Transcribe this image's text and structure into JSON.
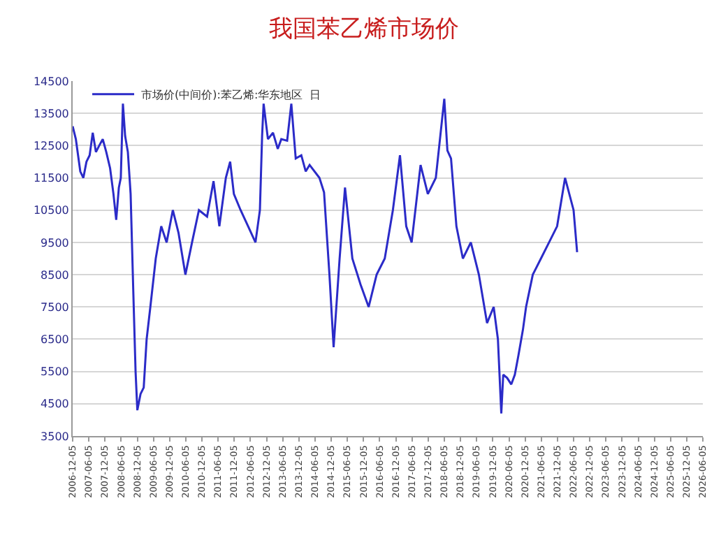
{
  "chart_data": {
    "type": "line",
    "title": "我国苯乙烯市场价",
    "x": [
      "2006-12-05",
      "2007-01-10",
      "2007-03-01",
      "2007-04-05",
      "2007-05-10",
      "2007-06-15",
      "2007-07-20",
      "2007-08-25",
      "2007-10-01",
      "2007-11-10",
      "2007-12-20",
      "2008-02-01",
      "2008-03-10",
      "2008-04-10",
      "2008-05-10",
      "2008-06-01",
      "2008-06-25",
      "2008-07-20",
      "2008-08-20",
      "2008-09-20",
      "2008-10-20",
      "2008-11-15",
      "2008-12-05",
      "2009-01-10",
      "2009-02-15",
      "2009-03-20",
      "2009-05-01",
      "2009-07-01",
      "2009-09-01",
      "2009-11-01",
      "2010-01-10",
      "2010-03-15",
      "2010-06-01",
      "2010-08-15",
      "2010-11-01",
      "2011-02-01",
      "2011-04-15",
      "2011-06-20",
      "2011-09-01",
      "2011-10-20",
      "2011-12-01",
      "2012-02-15",
      "2012-05-10",
      "2012-08-01",
      "2012-09-20",
      "2012-10-15",
      "2012-11-01",
      "2012-12-20",
      "2013-02-15",
      "2013-04-10",
      "2013-05-20",
      "2013-07-25",
      "2013-09-10",
      "2013-10-30",
      "2014-01-01",
      "2014-02-20",
      "2014-04-05",
      "2014-07-25",
      "2014-09-15",
      "2014-11-15",
      "2015-01-01",
      "2015-03-10",
      "2015-05-10",
      "2015-08-01",
      "2015-11-01",
      "2016-02-01",
      "2016-05-01",
      "2016-08-01",
      "2016-11-01",
      "2017-01-20",
      "2017-04-01",
      "2017-06-01",
      "2017-09-10",
      "2017-12-01",
      "2018-03-01",
      "2018-06-05",
      "2018-07-10",
      "2018-08-20",
      "2018-10-20",
      "2019-01-01",
      "2019-04-01",
      "2019-07-01",
      "2019-10-01",
      "2019-12-15",
      "2020-02-01",
      "2020-03-10",
      "2020-04-01",
      "2020-05-15",
      "2020-07-01",
      "2020-08-10",
      "2020-09-20",
      "2020-11-10",
      "2020-12-15",
      "2021-03-01",
      "2021-06-01",
      "2021-09-01",
      "2021-12-01",
      "2022-03-01",
      "2022-06-05",
      "2022-07-15"
    ],
    "series": [
      {
        "name": "市场价(中间价):苯乙烯:华东地区  日",
        "color": "#2b2bc8",
        "values": [
          13100,
          12700,
          11700,
          11500,
          12000,
          12200,
          12900,
          12300,
          12500,
          12700,
          12300,
          11800,
          11000,
          10200,
          11200,
          11500,
          13800,
          12800,
          12300,
          11000,
          8000,
          5500,
          4300,
          4800,
          5000,
          6500,
          7500,
          9000,
          10000,
          9500,
          10500,
          9800,
          8500,
          9500,
          10500,
          10300,
          11400,
          10000,
          11500,
          12000,
          11000,
          10500,
          10000,
          9500,
          10500,
          12800,
          13800,
          12700,
          12900,
          12400,
          12700,
          12650,
          13800,
          12100,
          12200,
          11700,
          11900,
          11500,
          11050,
          8500,
          6250,
          9000,
          11200,
          9000,
          8200,
          7500,
          8500,
          9000,
          10500,
          12200,
          10000,
          9500,
          11900,
          11000,
          11500,
          13950,
          12350,
          12100,
          10000,
          9000,
          9500,
          8500,
          7000,
          7500,
          6500,
          4200,
          5400,
          5300,
          5100,
          5400,
          6000,
          6800,
          7500,
          8500,
          9000,
          9500,
          10000,
          11500,
          10500,
          9200
        ]
      }
    ],
    "xlim": [
      "2006-12-05",
      "2026-06-05"
    ],
    "xticks": [
      "2006-12-05",
      "2007-06-05",
      "2007-12-05",
      "2008-06-05",
      "2008-12-05",
      "2009-06-05",
      "2009-12-05",
      "2010-06-05",
      "2010-12-05",
      "2011-06-05",
      "2011-12-05",
      "2012-06-05",
      "2012-12-05",
      "2013-06-05",
      "2013-12-05",
      "2014-06-05",
      "2014-12-05",
      "2015-06-05",
      "2015-12-05",
      "2016-06-05",
      "2016-12-05",
      "2017-06-05",
      "2017-12-05",
      "2018-06-05",
      "2018-12-05",
      "2019-06-05",
      "2019-12-05",
      "2020-06-05",
      "2020-12-05",
      "2021-06-05",
      "2021-12-05",
      "2022-06-05",
      "2022-12-05",
      "2023-06-05",
      "2023-12-05",
      "2024-06-05",
      "2024-12-05",
      "2025-06-05",
      "2025-12-05",
      "2026-06-05"
    ],
    "ylim": [
      3500,
      14500
    ],
    "yticks": [
      3500,
      4500,
      5500,
      6500,
      7500,
      8500,
      9500,
      10500,
      11500,
      12500,
      13500,
      14500
    ],
    "grid": "y",
    "legend": "top left",
    "marker": "none",
    "line_style": "solid"
  }
}
